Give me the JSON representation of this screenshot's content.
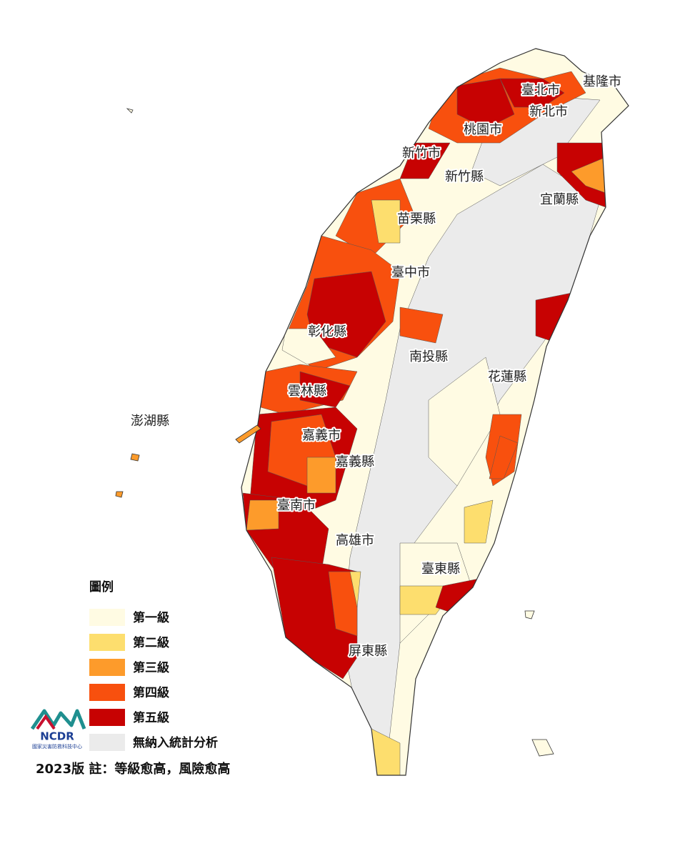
{
  "legend": {
    "title": "圖例",
    "items": [
      {
        "label": "第一級",
        "color": "#fffbe3"
      },
      {
        "label": "第二級",
        "color": "#fdde6e"
      },
      {
        "label": "第三級",
        "color": "#fd9b2b"
      },
      {
        "label": "第四級",
        "color": "#f8500e"
      },
      {
        "label": "第五級",
        "color": "#c70202"
      },
      {
        "label": "無納入統計分析",
        "color": "#ebebeb"
      }
    ]
  },
  "counties": [
    {
      "label": "基隆市"
    },
    {
      "label": "臺北市"
    },
    {
      "label": "新北市"
    },
    {
      "label": "桃園市"
    },
    {
      "label": "新竹市"
    },
    {
      "label": "新竹縣"
    },
    {
      "label": "宜蘭縣"
    },
    {
      "label": "苗栗縣"
    },
    {
      "label": "臺中市"
    },
    {
      "label": "彰化縣"
    },
    {
      "label": "南投縣"
    },
    {
      "label": "花蓮縣"
    },
    {
      "label": "雲林縣"
    },
    {
      "label": "澎湖縣"
    },
    {
      "label": "嘉義市"
    },
    {
      "label": "嘉義縣"
    },
    {
      "label": "臺南市"
    },
    {
      "label": "高雄市"
    },
    {
      "label": "臺東縣"
    },
    {
      "label": "屏東縣"
    }
  ],
  "logo": {
    "name": "NCDR",
    "subtitle": "國家災害防救科技中心"
  },
  "footer": "2023版 註：等級愈高，風險愈高"
}
